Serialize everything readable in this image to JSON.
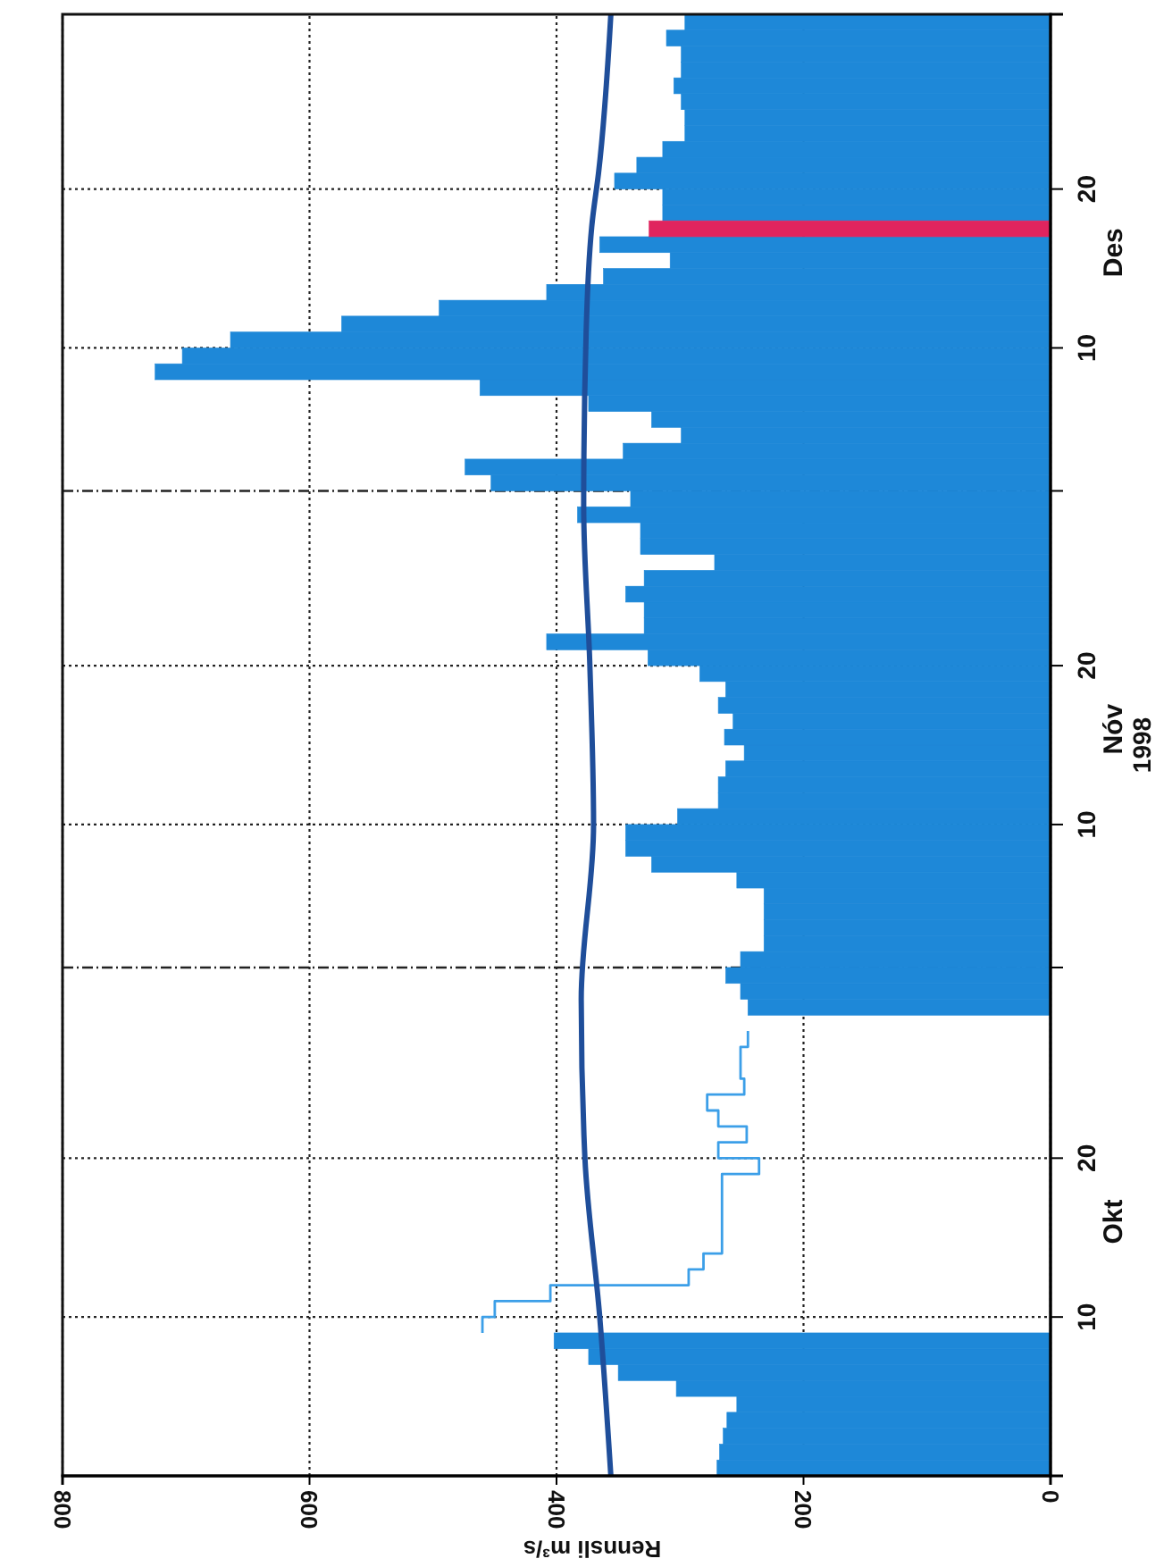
{
  "chart_data": {
    "type": "bar",
    "orientation": "horizontal",
    "xlabel": "Rennsli m³/s",
    "ylabel": "1998",
    "xlim": [
      800,
      0
    ],
    "xticks": [
      0,
      200,
      400,
      600,
      800
    ],
    "ylim": [
      "1998-09-30",
      "1998-12-31"
    ],
    "yticks": [
      {
        "value": "1998-10-10",
        "label": "10"
      },
      {
        "value": "1998-10-20",
        "label": "20"
      },
      {
        "value": "1998-11-01",
        "label": null
      },
      {
        "value": "1998-11-10",
        "label": "10"
      },
      {
        "value": "1998-11-20",
        "label": "20"
      },
      {
        "value": "1998-12-01",
        "label": null
      },
      {
        "value": "1998-12-10",
        "label": "10"
      },
      {
        "value": "1998-12-20",
        "label": "20"
      }
    ],
    "grid": true,
    "annotations": [
      "Okt",
      "Nóv",
      "Des"
    ],
    "series": [
      {
        "color": "#1e88d8",
        "x": [
          "1998-09-30",
          "1998-10-01",
          "1998-10-02",
          "1998-10-03",
          "1998-10-04",
          "1998-10-05",
          "1998-10-06",
          "1998-10-07",
          "1998-10-08",
          "1998-10-09",
          "1998-10-10",
          "1998-10-11",
          "1998-10-12",
          "1998-10-13",
          "1998-10-14",
          "1998-10-15",
          "1998-10-16",
          "1998-10-17",
          "1998-10-18",
          "1998-10-19",
          "1998-10-20",
          "1998-10-21",
          "1998-10-22",
          "1998-10-23",
          "1998-10-24",
          "1998-10-25",
          "1998-10-26",
          "1998-10-27",
          "1998-10-28",
          "1998-10-29",
          "1998-10-30",
          "1998-10-31",
          "1998-11-01",
          "1998-11-02",
          "1998-11-03",
          "1998-11-04",
          "1998-11-05",
          "1998-11-06",
          "1998-11-07",
          "1998-11-08",
          "1998-11-09",
          "1998-11-10",
          "1998-11-11",
          "1998-11-12",
          "1998-11-13",
          "1998-11-14",
          "1998-11-15",
          "1998-11-16",
          "1998-11-17",
          "1998-11-18",
          "1998-11-19",
          "1998-11-20",
          "1998-11-21",
          "1998-11-22",
          "1998-11-23",
          "1998-11-24",
          "1998-11-25",
          "1998-11-26",
          "1998-11-27",
          "1998-11-28",
          "1998-11-29",
          "1998-11-30",
          "1998-12-01",
          "1998-12-02",
          "1998-12-03",
          "1998-12-04",
          "1998-12-05",
          "1998-12-06",
          "1998-12-07",
          "1998-12-08",
          "1998-12-09",
          "1998-12-10",
          "1998-12-11",
          "1998-12-12",
          "1998-12-13",
          "1998-12-14",
          "1998-12-15",
          "1998-12-16",
          "1998-12-17",
          "1998-12-18",
          "1998-12-19",
          "1998-12-20",
          "1998-12-21",
          "1998-12-22",
          "1998-12-23",
          "1998-12-24",
          "1998-12-25",
          "1998-12-26",
          "1998-12-27",
          "1998-12-28",
          "1998-12-29",
          "1998-12-30"
        ],
        "values": [
          270,
          268,
          265,
          262,
          254,
          303,
          350,
          374,
          402,
          null,
          null,
          null,
          null,
          null,
          null,
          null,
          null,
          null,
          null,
          null,
          null,
          null,
          null,
          null,
          null,
          null,
          null,
          null,
          null,
          245,
          251,
          263,
          251,
          232,
          232,
          232,
          232,
          254,
          323,
          344,
          344,
          302,
          269,
          269,
          263,
          248,
          264,
          257,
          269,
          263,
          284,
          326,
          408,
          329,
          329,
          344,
          329,
          272,
          332,
          332,
          383,
          340,
          453,
          474,
          346,
          299,
          323,
          374,
          462,
          725,
          703,
          664,
          574,
          495,
          408,
          362,
          308,
          365,
          null,
          314,
          314,
          353,
          335,
          314,
          296,
          296,
          299,
          305,
          299,
          299,
          311,
          296
        ]
      },
      {
        "type": "step",
        "color": "#3c9fe8",
        "x": [
          "1998-10-09",
          "1998-10-10",
          "1998-10-11",
          "1998-10-12",
          "1998-10-13",
          "1998-10-14",
          "1998-10-15",
          "1998-10-16",
          "1998-10-17",
          "1998-10-18",
          "1998-10-19",
          "1998-10-20",
          "1998-10-21",
          "1998-10-22",
          "1998-10-23",
          "1998-10-24",
          "1998-10-25",
          "1998-10-26",
          "1998-10-27",
          "1998-10-28"
        ],
        "values": [
          460,
          450,
          405,
          293,
          281,
          266,
          266,
          266,
          266,
          266,
          236,
          269,
          246,
          269,
          278,
          248,
          251,
          251,
          245,
          245
        ]
      },
      {
        "color": "#e0245e",
        "x": [
          "1998-12-17"
        ],
        "values": [
          325
        ]
      },
      {
        "type": "line",
        "color": "#1f4e9a",
        "x": [
          "1998-09-30",
          "1998-10-10",
          "1998-10-20",
          "1998-10-30",
          "1998-11-10",
          "1998-11-20",
          "1998-11-30",
          "1998-12-11",
          "1998-12-18",
          "1998-12-21",
          "1998-12-31"
        ],
        "values": [
          356,
          365,
          377,
          380,
          370,
          373,
          378,
          376,
          371,
          366,
          356
        ]
      }
    ]
  }
}
